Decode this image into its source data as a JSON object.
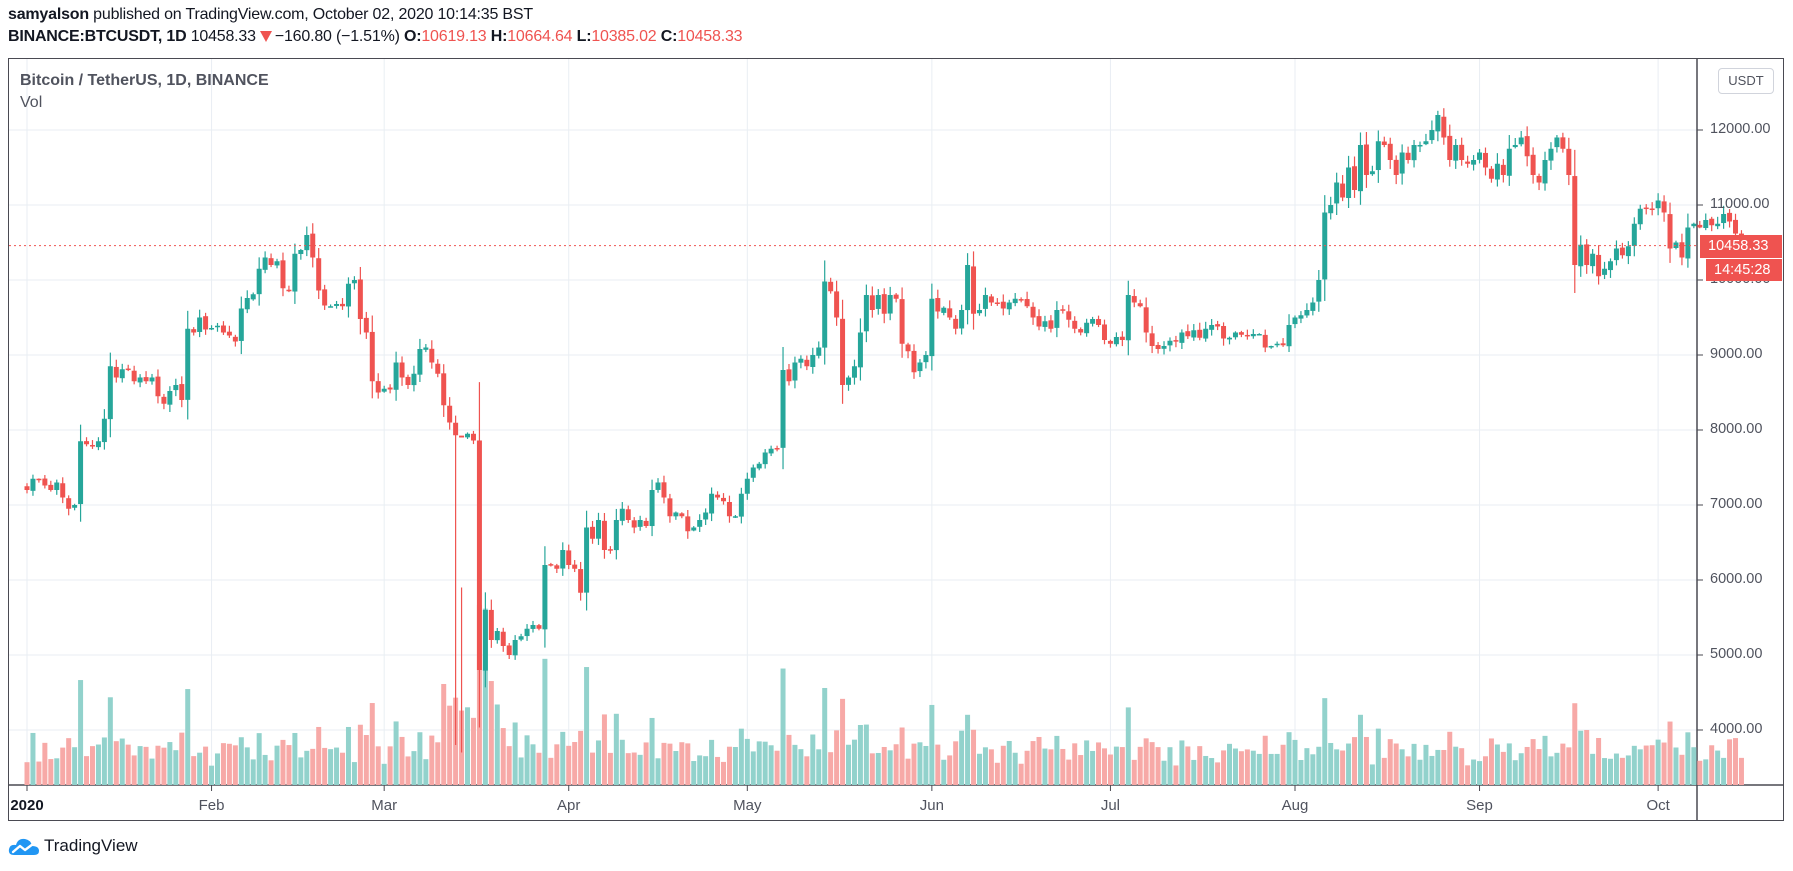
{
  "header": {
    "author": "samyalson",
    "published_text": " published on TradingView.com, October 02, 2020 10:14:35 BST",
    "symbol": "BINANCE:BTCUSDT, 1D",
    "last_price": "10458.33",
    "change_direction_icon": "down-triangle-icon",
    "change": "−160.80 (−1.51%)",
    "open_label": "O:",
    "open": "10619.13",
    "high_label": "H:",
    "high": "10664.64",
    "low_label": "L:",
    "low": "10385.02",
    "close_label": "C:",
    "close": "10458.33"
  },
  "legend": {
    "series_title": "Bitcoin / TetherUS, 1D, BINANCE",
    "volume_title": "Vol"
  },
  "price_scale": {
    "currency_button": "USDT",
    "labels": [
      "12000.00",
      "11000.00",
      "10000.00",
      "9000.00",
      "8000.00",
      "7000.00",
      "6000.00",
      "5000.00",
      "4000.00"
    ],
    "current_price_tag": "10458.33",
    "countdown_tag": "14:45:28"
  },
  "time_scale": {
    "labels": [
      "2020",
      "Feb",
      "Mar",
      "Apr",
      "May",
      "Jun",
      "Jul",
      "Aug",
      "Sep",
      "Oct"
    ]
  },
  "footer": {
    "brand": "TradingView",
    "brand_icon": "tradingview-cloud-icon"
  },
  "colors": {
    "up": "#26a69a",
    "down": "#ef5350",
    "vol_up": "#92d2cc",
    "vol_down": "#f7a9a7",
    "grid": "#e9eef3",
    "price_line": "#ef5350"
  },
  "chart_data": {
    "type": "candlestick",
    "title": "Bitcoin / TetherUS, 1D, BINANCE",
    "xlabel": "",
    "ylabel": "USDT",
    "ylim": [
      3300,
      12700
    ],
    "grid": true,
    "start_date": "2020-01-01",
    "end_date": "2020-10-02",
    "x_ticks": [
      "2020",
      "Feb",
      "Mar",
      "Apr",
      "May",
      "Jun",
      "Jul",
      "Aug",
      "Sep",
      "Oct"
    ],
    "y_ticks": [
      4000,
      5000,
      6000,
      7000,
      8000,
      9000,
      10000,
      11000,
      12000
    ],
    "current_price": 10458.33,
    "last_bar": {
      "open": 10619.13,
      "high": 10664.64,
      "low": 10385.02,
      "close": 10458.33,
      "change": -160.8,
      "change_pct": -1.51
    },
    "close": [
      7200,
      7350,
      7350,
      7260,
      7200,
      7300,
      7100,
      6950,
      7000,
      7850,
      7810,
      7780,
      7850,
      8150,
      8850,
      8700,
      8810,
      8800,
      8650,
      8700,
      8650,
      8700,
      8450,
      8350,
      8520,
      8600,
      8400,
      9350,
      9300,
      9500,
      9340,
      9360,
      9390,
      9300,
      9260,
      9180,
      9620,
      9760,
      9810,
      10150,
      10300,
      10200,
      10250,
      9890,
      9850,
      10350,
      10400,
      10600,
      10300,
      9860,
      9660,
      9650,
      9680,
      9650,
      9950,
      10000,
      9480,
      9300,
      8650,
      8500,
      8550,
      8540,
      8900,
      8700,
      8600,
      8750,
      9080,
      9100,
      8900,
      8750,
      8330,
      8100,
      7930,
      7900,
      7950,
      7860,
      4800,
      5600,
      5200,
      5320,
      5120,
      5000,
      5200,
      5250,
      5350,
      5400,
      5350,
      6200,
      6200,
      6150,
      6400,
      6200,
      6150,
      5830,
      6700,
      6550,
      6800,
      6400,
      6400,
      6800,
      6950,
      6800,
      6700,
      6800,
      6720,
      7200,
      7300,
      7100,
      6850,
      6900,
      6850,
      6650,
      6700,
      6800,
      6900,
      7150,
      7100,
      7050,
      6850,
      6850,
      7150,
      7350,
      7500,
      7550,
      7700,
      7750,
      7750,
      8800,
      8650,
      8900,
      8950,
      8850,
      9000,
      9100,
      9980,
      9850,
      9500,
      8600,
      8700,
      8850,
      9300,
      9800,
      9600,
      9800,
      9550,
      9800,
      9750,
      9150,
      9050,
      8770,
      8900,
      9000,
      9750,
      9580,
      9630,
      9500,
      9350,
      9600,
      10200,
      9550,
      9600,
      9800,
      9700,
      9700,
      9620,
      9700,
      9750,
      9730,
      9650,
      9500,
      9380,
      9450,
      9350,
      9600,
      9600,
      9470,
      9350,
      9300,
      9430,
      9480,
      9400,
      9200,
      9150,
      9240,
      9200,
      9800,
      9700,
      9650,
      9300,
      9120,
      9080,
      9120,
      9190,
      9180,
      9300,
      9250,
      9330,
      9230,
      9350,
      9400,
      9380,
      9220,
      9230,
      9300,
      9270,
      9250,
      9280,
      9280,
      9100,
      9120,
      9150,
      9130,
      9400,
      9500,
      9530,
      9600,
      9700,
      10000,
      10900,
      11000,
      11300,
      11100,
      11500,
      11200,
      11800,
      11400,
      11450,
      11850,
      11800,
      11600,
      11400,
      11700,
      11600,
      11800,
      11800,
      11850,
      12000,
      12200,
      11900,
      11600,
      11800,
      11600,
      11550,
      11600,
      11700,
      11500,
      11350,
      11550,
      11400,
      11750,
      11800,
      11900,
      11650,
      11400,
      11300,
      11600,
      11750,
      11900,
      11750,
      11400,
      10200,
      10470,
      10200,
      10350,
      10050,
      10150,
      10250,
      10420,
      10330,
      10450,
      10750,
      10950,
      10950,
      10940,
      11060,
      10900,
      10420,
      10500,
      10300,
      10700,
      10750,
      10700,
      10800,
      10730,
      10750,
      10880,
      10780,
      10619,
      10458.33
    ],
    "volume_note": "Volume histogram below price; bars colored by candle direction"
  }
}
